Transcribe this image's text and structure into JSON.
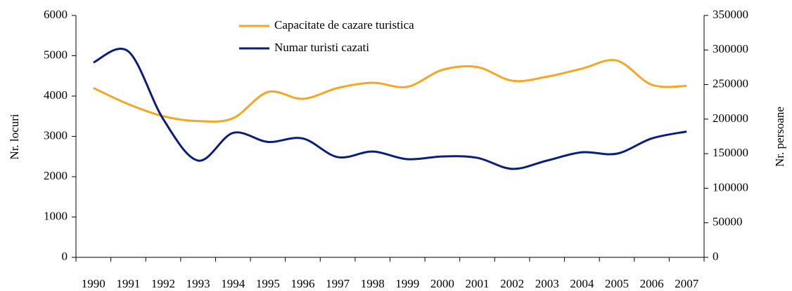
{
  "chart_data": {
    "type": "line",
    "categories": [
      "1990",
      "1991",
      "1992",
      "1993",
      "1994",
      "1995",
      "1996",
      "1997",
      "1998",
      "1999",
      "2000",
      "2001",
      "2002",
      "2003",
      "2004",
      "2005",
      "2006",
      "2007"
    ],
    "series": [
      {
        "name": "Capacitate de cazare turistica",
        "color": "#f5a623",
        "values": [
          4200,
          3800,
          3500,
          3380,
          3450,
          4100,
          3930,
          4200,
          4330,
          4230,
          4650,
          4720,
          4380,
          4480,
          4680,
          4880,
          4280,
          4250
        ]
      },
      {
        "name": "Numar turisti cazati",
        "color": "#0a1f7a",
        "axis": "y2",
        "values": [
          282000,
          298000,
          200000,
          140000,
          180000,
          167000,
          172000,
          145000,
          153000,
          142000,
          146000,
          144000,
          128000,
          140000,
          152000,
          150000,
          172000,
          182000
        ]
      }
    ],
    "ylabel": "Nr. locuri",
    "y2label": "Nr. persoane",
    "ylim": [
      0,
      6000
    ],
    "yticks": [
      0,
      1000,
      2000,
      3000,
      4000,
      5000,
      6000
    ],
    "y2lim": [
      0,
      350000
    ],
    "y2ticks": [
      0,
      50000,
      100000,
      150000,
      200000,
      250000,
      300000,
      350000
    ],
    "legend": "top"
  }
}
